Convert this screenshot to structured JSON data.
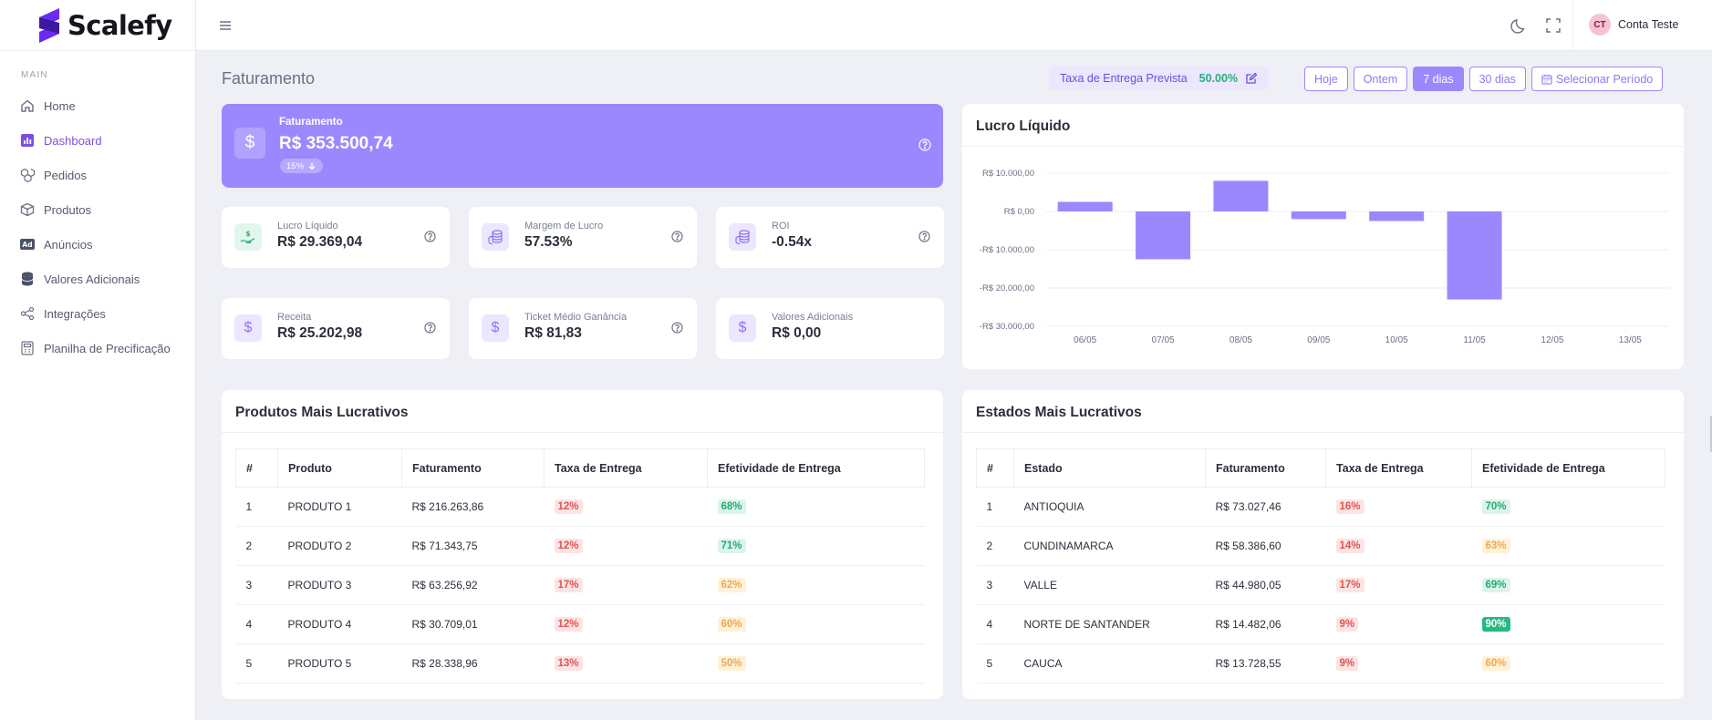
{
  "app": {
    "name": "Scalefy"
  },
  "sidebar": {
    "section": "MAIN",
    "items": [
      {
        "label": "Home",
        "icon": "home-icon",
        "active": false
      },
      {
        "label": "Dashboard",
        "icon": "bar-chart-icon",
        "active": true
      },
      {
        "label": "Pedidos",
        "icon": "boxes-icon",
        "active": false
      },
      {
        "label": "Produtos",
        "icon": "box-icon",
        "active": false
      },
      {
        "label": "Anúncios",
        "icon": "ad-icon",
        "active": false
      },
      {
        "label": "Valores Adicionais",
        "icon": "database-icon",
        "active": false
      },
      {
        "label": "Integrações",
        "icon": "share-icon",
        "active": false
      },
      {
        "label": "Planilha de Precificação",
        "icon": "spreadsheet-icon",
        "active": false
      }
    ]
  },
  "header": {
    "user": {
      "initials": "CT",
      "name": "Conta Teste"
    }
  },
  "page": {
    "title": "Faturamento",
    "delivery_rate": {
      "label": "Taxa de Entrega Prevista",
      "value": "50.00%"
    },
    "periods": [
      "Hoje",
      "Ontem",
      "7 dias",
      "30 dias",
      "Selecionar Período"
    ],
    "active_period": "7 dias"
  },
  "hero": {
    "label": "Faturamento",
    "value": "R$ 353.500,74",
    "badge": "15%"
  },
  "stats": [
    {
      "label": "Lucro Líquido",
      "value": "R$ 29.369,04",
      "icon": "money-hand-icon",
      "tone": "green"
    },
    {
      "label": "Margem de Lucro",
      "value": "57.53%",
      "icon": "coins-icon",
      "tone": "purple"
    },
    {
      "label": "ROI",
      "value": "-0.54x",
      "icon": "coins-icon",
      "tone": "purple"
    },
    {
      "label": "Receita",
      "value": "R$ 25.202,98",
      "icon": "dollar-icon",
      "tone": "purple"
    },
    {
      "label": "Ticket Médio Ganância",
      "value": "R$ 81,83",
      "icon": "dollar-icon",
      "tone": "purple"
    },
    {
      "label": "Valores Adicionais",
      "value": "R$ 0,00",
      "icon": "dollar-icon",
      "tone": "purple"
    }
  ],
  "chart_data": {
    "type": "bar",
    "title": "Lucro Líquido",
    "categories": [
      "06/05",
      "07/05",
      "08/05",
      "09/05",
      "10/05",
      "11/05",
      "12/05",
      "13/05"
    ],
    "values": [
      2500,
      -12500,
      8000,
      -2000,
      -2500,
      -23000,
      0,
      0
    ],
    "yticks": [
      "R$ 10.000,00",
      "R$ 0,00",
      "-R$ 10.000,00",
      "-R$ 20.000,00",
      "-R$ 30.000,00"
    ],
    "ylim": [
      -30000,
      10000
    ],
    "color": "#9b88ff",
    "grid": true
  },
  "products_table": {
    "title": "Produtos Mais Lucrativos",
    "columns": [
      "#",
      "Produto",
      "Faturamento",
      "Taxa de Entrega",
      "Efetividade de Entrega"
    ],
    "rows": [
      {
        "n": "1",
        "name": "PRODUTO 1",
        "revenue": "R$ 216.263,86",
        "rate": "12%",
        "rate_tone": "red",
        "eff": "68%",
        "eff_tone": "green"
      },
      {
        "n": "2",
        "name": "PRODUTO 2",
        "revenue": "R$ 71.343,75",
        "rate": "12%",
        "rate_tone": "red",
        "eff": "71%",
        "eff_tone": "green"
      },
      {
        "n": "3",
        "name": "PRODUTO 3",
        "revenue": "R$ 63.256,92",
        "rate": "17%",
        "rate_tone": "red",
        "eff": "62%",
        "eff_tone": "yellow"
      },
      {
        "n": "4",
        "name": "PRODUTO 4",
        "revenue": "R$ 30.709,01",
        "rate": "12%",
        "rate_tone": "red",
        "eff": "60%",
        "eff_tone": "yellow"
      },
      {
        "n": "5",
        "name": "PRODUTO 5",
        "revenue": "R$ 28.338,96",
        "rate": "13%",
        "rate_tone": "red",
        "eff": "50%",
        "eff_tone": "yellow"
      }
    ]
  },
  "states_table": {
    "title": "Estados Mais Lucrativos",
    "columns": [
      "#",
      "Estado",
      "Faturamento",
      "Taxa de Entrega",
      "Efetividade de Entrega"
    ],
    "rows": [
      {
        "n": "1",
        "name": "ANTIOQUIA",
        "revenue": "R$ 73.027,46",
        "rate": "16%",
        "rate_tone": "red",
        "eff": "70%",
        "eff_tone": "green"
      },
      {
        "n": "2",
        "name": "CUNDINAMARCA",
        "revenue": "R$ 58.386,60",
        "rate": "14%",
        "rate_tone": "red",
        "eff": "63%",
        "eff_tone": "yellow"
      },
      {
        "n": "3",
        "name": "VALLE",
        "revenue": "R$ 44.980,05",
        "rate": "17%",
        "rate_tone": "red",
        "eff": "69%",
        "eff_tone": "green"
      },
      {
        "n": "4",
        "name": "NORTE DE SANTANDER",
        "revenue": "R$ 14.482,06",
        "rate": "9%",
        "rate_tone": "red",
        "eff": "90%",
        "eff_tone": "greensolid"
      },
      {
        "n": "5",
        "name": "CAUCA",
        "revenue": "R$ 13.728,55",
        "rate": "9%",
        "rate_tone": "red",
        "eff": "60%",
        "eff_tone": "yellow"
      }
    ]
  },
  "colors": {
    "accent": "#9b88ff",
    "active_nav": "#7b4ee6",
    "positive": "#27ae7a",
    "negative": "#e0534f"
  }
}
